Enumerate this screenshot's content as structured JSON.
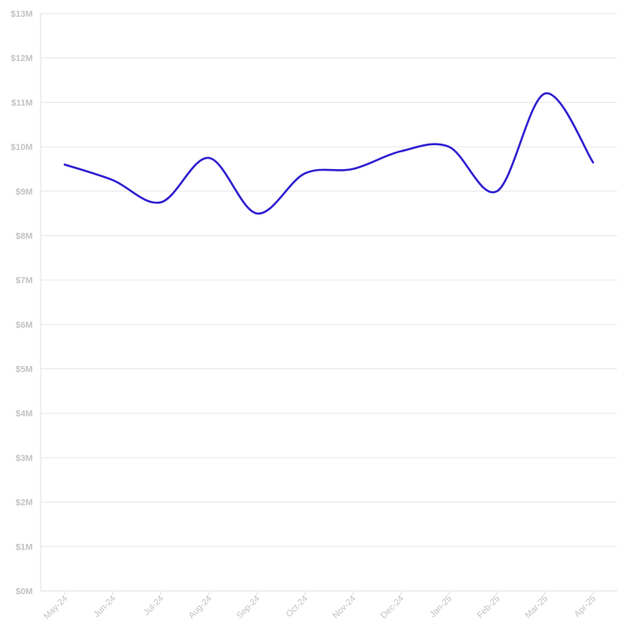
{
  "chart_data": {
    "type": "line",
    "categories": [
      "May-24",
      "Jun-24",
      "Jul-24",
      "Aug-24",
      "Sep-24",
      "Oct-24",
      "Nov-24",
      "Dec-24",
      "Jan-25",
      "Feb-25",
      "Mar-25",
      "Apr-25"
    ],
    "series": [
      {
        "values": [
          9.6,
          9.25,
          8.75,
          9.75,
          8.5,
          9.4,
          9.5,
          9.9,
          10.0,
          9.0,
          11.2,
          9.65
        ]
      }
    ],
    "y_ticks": [
      "$0M",
      "$1M",
      "$2M",
      "$3M",
      "$4M",
      "$5M",
      "$6M",
      "$7M",
      "$8M",
      "$9M",
      "$10M",
      "$11M",
      "$12M",
      "$13M"
    ],
    "ylim": [
      0,
      13
    ],
    "y_unit": "millions of dollars",
    "title": "",
    "xlabel": "",
    "ylabel": "",
    "grid": true,
    "legend": "none",
    "line_color": "#2f1fd0"
  }
}
